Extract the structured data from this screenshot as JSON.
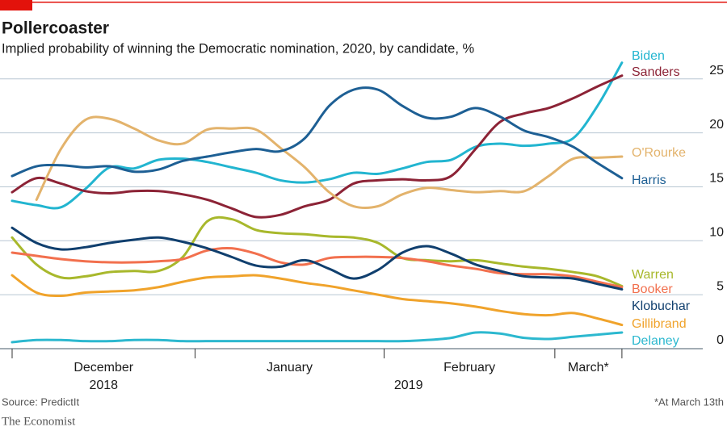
{
  "chart_data": {
    "type": "line",
    "title": "Pollercoaster",
    "subtitle": "Implied probability of winning the Democratic nomination, 2020, by candidate, %",
    "source": "Source: PredictIt",
    "footnote": "*At March 13th",
    "brand": "The Economist",
    "month_labels": [
      "December",
      "January",
      "February",
      "March*"
    ],
    "year_labels": [
      "2018",
      "2019"
    ],
    "x": [
      0,
      4,
      8,
      12,
      16,
      20,
      24,
      28,
      32,
      36,
      40,
      44,
      48,
      52,
      56,
      60,
      64,
      68,
      72,
      76,
      80,
      84,
      88,
      92,
      96,
      100
    ],
    "xlim": [
      0,
      102
    ],
    "xticks": [
      0,
      30,
      61,
      89,
      100
    ],
    "ylim": [
      0,
      27
    ],
    "yticks": [
      0,
      5,
      10,
      15,
      20,
      25
    ],
    "grid": true,
    "series": [
      {
        "name": "Biden",
        "color": "#22b5d0",
        "values": [
          13.7,
          13.3,
          13.1,
          14.8,
          16.8,
          16.7,
          17.5,
          17.6,
          17.3,
          16.8,
          16.3,
          15.6,
          15.4,
          15.7,
          16.3,
          16.2,
          16.7,
          17.3,
          17.5,
          18.7,
          19,
          18.8,
          19,
          19.5,
          22.5,
          26.5
        ]
      },
      {
        "name": "Sanders",
        "color": "#8c2336",
        "values": [
          14.5,
          15.8,
          15.3,
          14.6,
          14.4,
          14.6,
          14.6,
          14.3,
          13.8,
          13,
          12.2,
          12.4,
          13.2,
          13.8,
          15.3,
          15.6,
          15.7,
          15.6,
          16,
          18.5,
          21,
          21.8,
          22.3,
          23.2,
          24.3,
          25.3
        ]
      },
      {
        "name": "O'Rourke",
        "color": "#e3b36c",
        "values": [
          null,
          13.8,
          18.5,
          21.2,
          21.3,
          20.4,
          19.3,
          19,
          20.3,
          20.4,
          20.3,
          18.6,
          16.8,
          14.5,
          13.2,
          13.2,
          14.3,
          14.9,
          14.7,
          14.5,
          14.6,
          14.6,
          16,
          17.6,
          17.7,
          17.8
        ]
      },
      {
        "name": "Harris",
        "color": "#1d5f94",
        "values": [
          16,
          16.9,
          17,
          16.8,
          16.9,
          16.4,
          16.6,
          17.4,
          17.8,
          18.2,
          18.5,
          18.3,
          19.5,
          22.5,
          24,
          24,
          22.5,
          21.4,
          21.5,
          22.3,
          21.5,
          20.2,
          19.6,
          18.7,
          17.2,
          15.8
        ]
      },
      {
        "name": "Warren",
        "color": "#a8b82c",
        "values": [
          10.3,
          7.8,
          6.6,
          6.7,
          7.1,
          7.2,
          7.2,
          8.5,
          11.8,
          12,
          11,
          10.7,
          10.6,
          10.4,
          10.3,
          9.8,
          8.4,
          8.2,
          8.1,
          8.2,
          7.9,
          7.6,
          7.4,
          7.1,
          6.7,
          5.8
        ]
      },
      {
        "name": "Booker",
        "color": "#f2704e",
        "values": [
          8.9,
          8.6,
          8.3,
          8.1,
          8,
          8,
          8.1,
          8.3,
          9.1,
          9.3,
          8.8,
          8,
          7.8,
          8.4,
          8.5,
          8.5,
          8.4,
          8.1,
          7.7,
          7.4,
          7,
          6.9,
          6.9,
          6.7,
          6.2,
          5.7
        ]
      },
      {
        "name": "Klobuchar",
        "color": "#103f6e",
        "values": [
          11.2,
          9.8,
          9.2,
          9.4,
          9.8,
          10.1,
          10.3,
          9.9,
          9.3,
          8.5,
          7.7,
          7.6,
          8.2,
          7.4,
          6.5,
          7.3,
          8.9,
          9.5,
          8.8,
          7.8,
          7.2,
          6.7,
          6.6,
          6.5,
          6,
          5.5
        ]
      },
      {
        "name": "Gillibrand",
        "color": "#f0a32b",
        "values": [
          6.8,
          5.2,
          4.9,
          5.2,
          5.3,
          5.4,
          5.7,
          6.2,
          6.6,
          6.7,
          6.8,
          6.5,
          6.1,
          5.8,
          5.4,
          5,
          4.6,
          4.4,
          4.2,
          3.9,
          3.5,
          3.2,
          3.1,
          3.3,
          2.8,
          2.2
        ]
      },
      {
        "name": "Delaney",
        "color": "#2cb8cf",
        "values": [
          0.6,
          0.8,
          0.8,
          0.7,
          0.7,
          0.8,
          0.8,
          0.7,
          0.7,
          0.7,
          0.7,
          0.7,
          0.7,
          0.7,
          0.7,
          0.7,
          0.7,
          0.8,
          1,
          1.5,
          1.4,
          1,
          0.9,
          1.1,
          1.3,
          1.5
        ]
      }
    ]
  }
}
